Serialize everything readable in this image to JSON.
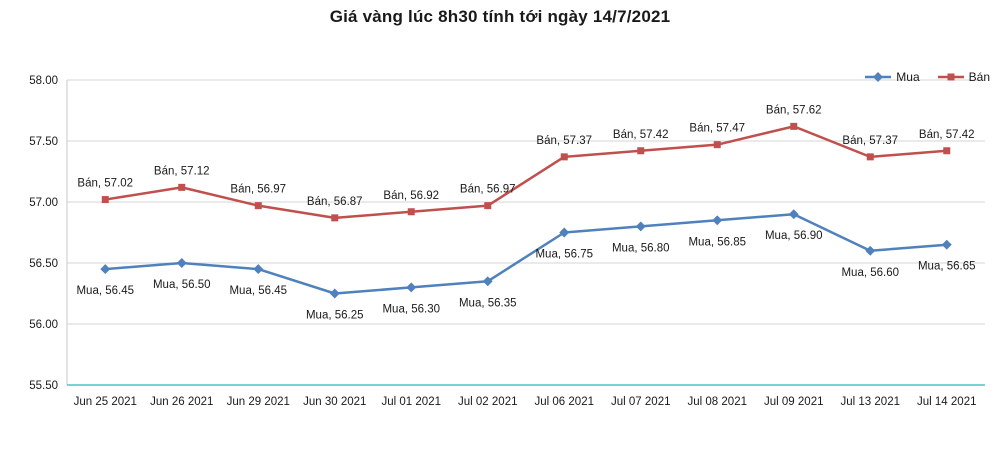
{
  "title": "Giá vàng lúc 8h30 tính tới ngày 14/7/2021",
  "chart_data": {
    "type": "line",
    "title": "Giá vàng lúc 8h30 tính tới ngày 14/7/2021",
    "categories": [
      "Jun 25 2021",
      "Jun 26 2021",
      "Jun 29 2021",
      "Jun 30 2021",
      "Jul 01 2021",
      "Jul 02 2021",
      "Jul 06 2021",
      "Jul 07 2021",
      "Jul 08 2021",
      "Jul 09 2021",
      "Jul 13 2021",
      "Jul 14 2021"
    ],
    "series": [
      {
        "name": "Mua",
        "values": [
          56.45,
          56.5,
          56.45,
          56.25,
          56.3,
          56.35,
          56.75,
          56.8,
          56.85,
          56.9,
          56.6,
          56.65
        ],
        "color": "#4f81bd",
        "marker": "diamond",
        "label_position": "below"
      },
      {
        "name": "Bán",
        "values": [
          57.02,
          57.12,
          56.97,
          56.87,
          56.92,
          56.97,
          57.37,
          57.42,
          57.47,
          57.62,
          57.37,
          57.42
        ],
        "color": "#c0504d",
        "marker": "square",
        "label_position": "above"
      }
    ],
    "xlabel": "",
    "ylabel": "",
    "ylim": [
      55.5,
      58.0
    ],
    "yticks": [
      55.5,
      56.0,
      56.5,
      57.0,
      57.5,
      58.0
    ],
    "ytick_labels": [
      "55.50",
      "56.00",
      "56.50",
      "57.00",
      "57.50",
      "58.00"
    ],
    "grid": true,
    "data_labels": true,
    "legend_position": "top-right",
    "colors": {
      "grid": "#d4d4d4",
      "axis_left": "#c9c9c9",
      "axis_bottom": "#4fc3c8",
      "tick_text": "#1a1a1a",
      "label_text": "#1a1a1a",
      "title_text": "#1a1a1a"
    }
  }
}
